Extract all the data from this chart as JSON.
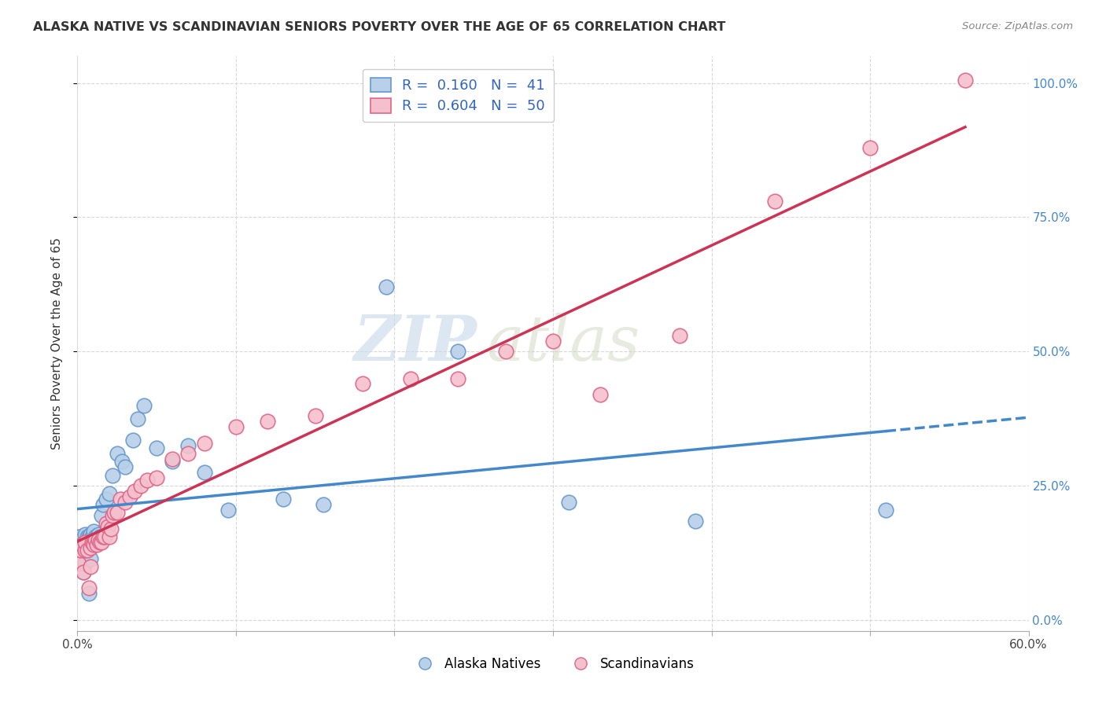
{
  "title": "ALASKA NATIVE VS SCANDINAVIAN SENIORS POVERTY OVER THE AGE OF 65 CORRELATION CHART",
  "source": "Source: ZipAtlas.com",
  "ylabel": "Seniors Poverty Over the Age of 65",
  "xlim": [
    0.0,
    0.6
  ],
  "ylim": [
    -0.02,
    1.05
  ],
  "xticks": [
    0.0,
    0.1,
    0.2,
    0.3,
    0.4,
    0.5,
    0.6
  ],
  "yticks": [
    0.0,
    0.25,
    0.5,
    0.75,
    1.0
  ],
  "grid_color": "#d8d8d8",
  "background_color": "#ffffff",
  "alaska_color": "#b8d0e8",
  "alaska_edge_color": "#6699cc",
  "scand_color": "#f5c0ce",
  "scand_edge_color": "#dd6688",
  "alaska_R": 0.16,
  "alaska_N": 41,
  "scand_R": 0.604,
  "scand_N": 50,
  "alaska_line_color": "#4488cc",
  "scand_line_color": "#cc3355",
  "watermark_zip": "ZIP",
  "watermark_atlas": "atlas",
  "alaska_scatter_x": [
    0.001,
    0.002,
    0.003,
    0.004,
    0.005,
    0.005,
    0.006,
    0.007,
    0.007,
    0.008,
    0.008,
    0.009,
    0.01,
    0.01,
    0.011,
    0.012,
    0.013,
    0.014,
    0.015,
    0.016,
    0.018,
    0.02,
    0.022,
    0.025,
    0.028,
    0.03,
    0.035,
    0.038,
    0.042,
    0.05,
    0.06,
    0.07,
    0.08,
    0.095,
    0.13,
    0.155,
    0.195,
    0.24,
    0.31,
    0.39,
    0.51
  ],
  "alaska_scatter_y": [
    0.155,
    0.148,
    0.14,
    0.09,
    0.105,
    0.16,
    0.155,
    0.05,
    0.155,
    0.115,
    0.16,
    0.155,
    0.148,
    0.165,
    0.155,
    0.155,
    0.16,
    0.155,
    0.195,
    0.215,
    0.225,
    0.235,
    0.27,
    0.31,
    0.295,
    0.285,
    0.335,
    0.375,
    0.4,
    0.32,
    0.295,
    0.325,
    0.275,
    0.205,
    0.225,
    0.215,
    0.62,
    0.5,
    0.22,
    0.185,
    0.205
  ],
  "scand_scatter_x": [
    0.001,
    0.002,
    0.003,
    0.004,
    0.005,
    0.005,
    0.006,
    0.007,
    0.008,
    0.008,
    0.009,
    0.01,
    0.01,
    0.011,
    0.012,
    0.013,
    0.014,
    0.015,
    0.016,
    0.017,
    0.018,
    0.019,
    0.02,
    0.021,
    0.022,
    0.023,
    0.025,
    0.027,
    0.03,
    0.033,
    0.036,
    0.04,
    0.044,
    0.05,
    0.06,
    0.07,
    0.08,
    0.1,
    0.12,
    0.15,
    0.18,
    0.21,
    0.24,
    0.27,
    0.3,
    0.33,
    0.38,
    0.44,
    0.5,
    0.56
  ],
  "scand_scatter_y": [
    0.105,
    0.13,
    0.14,
    0.09,
    0.13,
    0.145,
    0.13,
    0.06,
    0.1,
    0.135,
    0.145,
    0.145,
    0.14,
    0.15,
    0.14,
    0.15,
    0.145,
    0.145,
    0.155,
    0.155,
    0.18,
    0.175,
    0.155,
    0.17,
    0.195,
    0.2,
    0.2,
    0.225,
    0.22,
    0.23,
    0.24,
    0.25,
    0.26,
    0.265,
    0.3,
    0.31,
    0.33,
    0.36,
    0.37,
    0.38,
    0.44,
    0.45,
    0.45,
    0.5,
    0.52,
    0.42,
    0.53,
    0.78,
    0.88,
    1.005
  ]
}
